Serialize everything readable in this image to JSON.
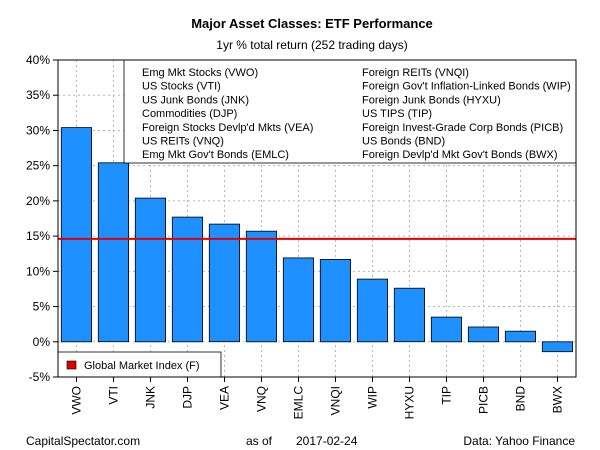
{
  "chart_data": {
    "type": "bar",
    "title": "Major Asset Classes: ETF Performance",
    "subtitle": "1yr % total return (252 trading days)",
    "categories": [
      "VWO",
      "VTI",
      "JNK",
      "DJP",
      "VEA",
      "VNQ",
      "EMLC",
      "VNQI",
      "WIP",
      "HYXU",
      "TIP",
      "PICB",
      "BND",
      "BWX"
    ],
    "values": [
      30.4,
      25.4,
      20.4,
      17.7,
      16.7,
      15.7,
      11.9,
      11.7,
      8.9,
      7.6,
      3.5,
      2.1,
      1.5,
      -1.4
    ],
    "ylim": [
      -5,
      40
    ],
    "yticks": [
      -5,
      0,
      5,
      10,
      15,
      20,
      25,
      30,
      35,
      40
    ],
    "ytick_labels": [
      "-5%",
      "0%",
      "5%",
      "10%",
      "15%",
      "20%",
      "25%",
      "30%",
      "35%",
      "40%"
    ],
    "bar_color": "#1E90FF",
    "reference_line": {
      "label": "Global Market Index (F)",
      "value": 14.6,
      "color": "#E00000"
    },
    "legend_left": [
      "Emg Mkt Stocks (VWO)",
      "US Stocks (VTI)",
      "US Junk Bonds (JNK)",
      "Commodities (DJP)",
      "Foreign Stocks Devlp'd Mkts (VEA)",
      "US REITs (VNQ)",
      "Emg Mkt Gov't Bonds (EMLC)"
    ],
    "legend_right": [
      "Foreign REITs (VNQI)",
      "Foreign Gov't Inflation-Linked Bonds (WIP)",
      "Foreign Junk Bonds (HYXU)",
      "US TIPS (TIP)",
      "Foreign Invest-Grade Corp Bonds (PICB)",
      "US Bonds (BND)",
      "Foreign Devlp'd Mkt Gov't Bonds (BWX)"
    ],
    "grid": true
  },
  "footer": {
    "source_left": "CapitalSpectator.com",
    "as_of_label": "as of",
    "as_of_date": "2017-02-24",
    "data_source": "Data: Yahoo Finance"
  }
}
